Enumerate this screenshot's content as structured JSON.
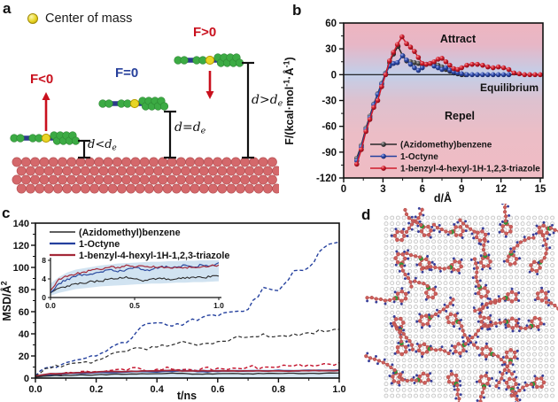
{
  "panels": {
    "a": "a",
    "b": "b",
    "c": "c",
    "d": "d"
  },
  "panel_a": {
    "legend_text": "Center of mass",
    "f_labels": {
      "f_neg": "F<0",
      "f_zero": "F=0",
      "f_pos": "F>0"
    },
    "d_labels": [
      {
        "main": "d<d",
        "sub": "e"
      },
      {
        "main": "d=d",
        "sub": "e"
      },
      {
        "main": "d>d",
        "sub": "e"
      }
    ]
  },
  "panel_d": {
    "note": "top view of molecules self-assembled on substrate lattice"
  },
  "colors": {
    "series_black": "#2a2a2a",
    "series_blue": "#24409e",
    "series_red": "#cf1b2b",
    "series_dark_red": "#a42838",
    "dashed_red": "#c3102a",
    "band_blue": "#c6dcee",
    "bg_pink": "#eeb5c0",
    "bg_blue": "#c2cfe9",
    "arrow_red": "#c9101d",
    "label_blue": "#27409b",
    "molecule_green": "#3cab44",
    "molecule_backbone_blue": "#2b3a8c",
    "com_yellow": "#e8d525",
    "surface_red": "#d4686b",
    "surface_stroke": "#b85356",
    "d_ring_red": "#c4605c",
    "d_atom_red": "#cd5f5c",
    "d_dot_blue": "#383f99",
    "d_green": "#2e9e38",
    "d_grid_stroke": "#bcbcbc"
  },
  "chart_data": [
    {
      "id": "panel-b-force-distance",
      "type": "line",
      "title": "",
      "xlabel": "d/Å",
      "ylabel": "F/(kcal·mol^-1·Å^-1)",
      "ylabel_parts": [
        {
          "t": "F/(kcal·mol"
        },
        {
          "t": "-1",
          "sup": true
        },
        {
          "t": "·Å"
        },
        {
          "t": "-1",
          "sup": true
        },
        {
          "t": ")"
        }
      ],
      "xlim": [
        0,
        15.2
      ],
      "ylim": [
        -120,
        60
      ],
      "x_ticks": [
        "0",
        "3",
        "6",
        "9",
        "12",
        "15"
      ],
      "x_tick_vals": [
        0,
        3,
        6,
        9,
        12,
        15
      ],
      "x_minor_vals": [
        1.5,
        4.5,
        7.5,
        10.5,
        13.5
      ],
      "y_ticks": [
        "60",
        "30",
        "0",
        "-30",
        "-60",
        "-90",
        "-120"
      ],
      "y_tick_vals": [
        60,
        30,
        0,
        -30,
        -60,
        -90,
        -120
      ],
      "y_minor_vals": [
        45,
        15,
        -15,
        -45,
        -75,
        -105
      ],
      "annotations": {
        "attract": "Attract",
        "equilibrium": "Equilibrium",
        "repel": "Repel"
      },
      "legend_position": "bottom-left",
      "grid": false,
      "series": [
        {
          "name": "(Azidomethy)benzene",
          "color": "#2a2a2a",
          "x": [
            1.0,
            1.35,
            1.7,
            2.0,
            2.3,
            2.6,
            2.9,
            3.2,
            3.5,
            3.8,
            4.15,
            4.5,
            4.8,
            5.1,
            5.4,
            5.7,
            6.0,
            6.3,
            6.6,
            6.9,
            7.2,
            7.5,
            7.8,
            8.1,
            8.4,
            8.7,
            9.0,
            9.3
          ],
          "y": [
            -97,
            -82,
            -62,
            -48,
            -34,
            -22,
            -10,
            2,
            14,
            24,
            33,
            22,
            16,
            15,
            14,
            13,
            10,
            12,
            13,
            13,
            11,
            9,
            6,
            4,
            2,
            1,
            0,
            0
          ]
        },
        {
          "name": "1-Octyne",
          "color": "#24409e",
          "x": [
            1.0,
            1.35,
            1.7,
            2.0,
            2.3,
            2.6,
            2.9,
            3.2,
            3.5,
            3.8,
            4.1,
            4.5,
            4.8,
            5.1,
            5.4,
            5.7,
            6.0,
            6.3,
            6.6,
            6.9,
            7.2,
            7.5,
            7.8,
            8.1,
            8.4,
            8.7,
            9.0,
            9.4,
            9.8,
            10.2,
            10.6,
            11.0,
            11.4,
            11.8,
            12.2,
            12.6
          ],
          "y": [
            -100,
            -84,
            -64,
            -50,
            -35,
            -23,
            -11,
            1,
            10,
            13,
            14,
            22,
            17,
            12,
            8,
            5,
            8,
            12,
            13,
            10,
            8,
            6,
            8,
            5,
            3,
            2,
            1,
            0,
            0,
            0,
            0,
            0,
            0,
            0,
            0,
            0
          ]
        },
        {
          "name": "1-benzyl-4-hexyl-1H-1,2,3-triazole",
          "color": "#cf1b2b",
          "x": [
            1.0,
            1.35,
            1.7,
            2.0,
            2.3,
            2.6,
            2.9,
            3.2,
            3.5,
            3.8,
            4.1,
            4.45,
            4.8,
            5.1,
            5.4,
            5.7,
            6.0,
            6.3,
            6.6,
            6.9,
            7.2,
            7.5,
            7.8,
            8.1,
            8.4,
            8.7,
            9.0,
            9.4,
            9.8,
            10.2,
            10.6,
            11.0,
            11.4,
            11.8,
            12.2,
            12.6,
            13.0,
            13.4,
            13.8,
            14.2,
            14.6,
            15.0
          ],
          "y": [
            -104,
            -87,
            -66,
            -52,
            -38,
            -30,
            -14,
            0,
            16,
            26,
            35,
            44,
            36,
            32,
            27,
            20,
            13,
            12,
            13,
            15,
            18,
            19,
            15,
            11,
            7,
            6,
            8,
            11,
            12,
            12,
            11,
            9,
            8,
            9,
            8,
            6,
            2,
            1,
            0,
            0,
            0,
            0
          ]
        }
      ]
    },
    {
      "id": "panel-c-msd",
      "type": "line",
      "title": "",
      "xlabel": "t/ns",
      "ylabel": "MSD/Å^2",
      "ylabel_parts": [
        {
          "t": "MSD/Å"
        },
        {
          "t": "2",
          "sup": true
        }
      ],
      "xlim": [
        0,
        1
      ],
      "ylim": [
        0,
        140
      ],
      "x_ticks": [
        "0.0",
        "0.2",
        "0.4",
        "0.6",
        "0.8",
        "1.0"
      ],
      "x_tick_vals": [
        0,
        0.2,
        0.4,
        0.6,
        0.8,
        1.0
      ],
      "x_minor_vals": [
        0.1,
        0.3,
        0.5,
        0.7,
        0.9
      ],
      "y_ticks": [
        "0",
        "20",
        "40",
        "60",
        "80",
        "100",
        "120",
        "140"
      ],
      "y_tick_vals": [
        0,
        20,
        40,
        60,
        80,
        100,
        120,
        140
      ],
      "y_minor_vals": [
        10,
        30,
        50,
        70,
        90,
        110,
        130
      ],
      "legend_entries": [
        "(Azidomethyl)benzene",
        "1-Octyne",
        "1-benzyl-4-hexyl-1H-1,2,3-triazole"
      ],
      "legend_colors": [
        "#2a2a2a",
        "#24409e",
        "#a42838"
      ],
      "grid": false,
      "t": [
        0,
        0.05,
        0.1,
        0.15,
        0.2,
        0.25,
        0.3,
        0.35,
        0.4,
        0.45,
        0.5,
        0.55,
        0.6,
        0.65,
        0.7,
        0.75,
        0.8,
        0.85,
        0.9,
        0.95,
        1.0
      ],
      "band_upper": [
        3,
        5,
        5.5,
        6,
        6.5,
        7,
        7,
        7.5,
        7.5,
        8,
        8,
        8,
        8,
        8,
        8,
        8,
        8,
        8,
        8,
        8,
        8
      ],
      "series": [
        {
          "name": "1-Octyne (dashed)",
          "style": "dashed",
          "color": "#24409e",
          "width": 1.4,
          "values": [
            2,
            10,
            14,
            17,
            20,
            28,
            32,
            47,
            50,
            47,
            51,
            55,
            56,
            60,
            62,
            82,
            79,
            97,
            100,
            118,
            123
          ]
        },
        {
          "name": "(Azidomethyl)benzene (dashed)",
          "style": "dashed",
          "color": "#2a2a2a",
          "width": 1.2,
          "values": [
            2,
            9,
            12,
            14,
            16,
            22,
            24,
            27,
            28,
            30,
            32,
            31,
            33,
            36,
            37,
            40,
            38,
            40,
            41,
            42,
            44
          ]
        },
        {
          "name": "1-benzyl-4-hexyl-1H-1,2,3-triazole (dashed)",
          "style": "dashed",
          "color": "#c3102a",
          "width": 1.4,
          "values": [
            2,
            4,
            5,
            6,
            6,
            7,
            7,
            8,
            8,
            8,
            8,
            9,
            9,
            9,
            10,
            10,
            10,
            11,
            12,
            13,
            14
          ]
        },
        {
          "name": "1-Octyne (solid)",
          "style": "solid",
          "color": "#2b4a9e",
          "width": 1.7,
          "values": [
            1,
            3,
            4,
            4.5,
            5,
            5,
            5.5,
            6,
            5.5,
            6,
            6.5,
            6,
            6,
            6.5,
            6.5,
            6.5,
            7,
            6.5,
            7,
            6.8,
            7.5
          ]
        },
        {
          "name": "1-benzyl-4-hexyl-1H-1,2,3-triazole (solid)",
          "style": "solid",
          "color": "#a42838",
          "width": 1.7,
          "values": [
            1.5,
            4,
            4.5,
            5,
            5.5,
            6,
            6,
            6.5,
            6.5,
            7,
            6.5,
            6.8,
            6.5,
            6.6,
            6.5,
            6.4,
            6.5,
            6.5,
            6.6,
            6.8,
            7
          ]
        },
        {
          "name": "(Azidomethyl)benzene (solid)",
          "style": "solid",
          "color": "#2a2a2a",
          "width": 1.3,
          "values": [
            1,
            2,
            2.5,
            3,
            3,
            3.5,
            3.5,
            4,
            4,
            4.5,
            4,
            3.5,
            4,
            4.2,
            4,
            4,
            4.1,
            4.4,
            4.3,
            4.4,
            4.6
          ]
        }
      ]
    },
    {
      "id": "panel-c-inset",
      "type": "line",
      "xlim": [
        0,
        1
      ],
      "ylim": [
        0,
        8
      ],
      "x_ticks": [
        "0.0",
        "0.5",
        "1.0"
      ],
      "x_tick_vals": [
        0,
        0.5,
        1.0
      ],
      "y_ticks": [
        "0",
        "4",
        "8"
      ],
      "y_tick_vals": [
        0,
        4,
        8
      ],
      "band_lower": [
        0.4,
        1,
        1.4,
        1.8,
        2,
        2.2,
        2.4,
        2.5,
        2.6,
        2.7,
        2.8,
        2.9,
        3,
        3,
        3.1,
        3.2,
        3.2,
        3.3,
        3.3,
        3.4,
        3.5
      ],
      "band_upper": [
        3,
        4.4,
        5.4,
        6,
        6.3,
        6.6,
        6.9,
        7.1,
        7.3,
        7.4,
        7.5,
        7.6,
        7.7,
        7.7,
        7.8,
        7.8,
        7.9,
        7.9,
        8,
        8,
        8
      ],
      "series_ref": "solid series of panel-c-msd (black, blue, red)"
    }
  ]
}
